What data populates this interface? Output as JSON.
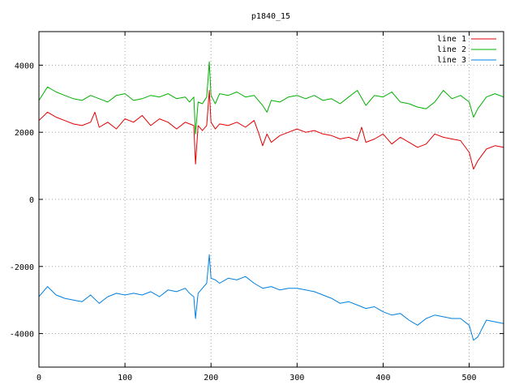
{
  "chart_data": {
    "type": "line",
    "title": "p1840_15",
    "xlabel": "",
    "ylabel": "",
    "xlim": [
      0,
      540
    ],
    "ylim": [
      -5000,
      5000
    ],
    "xticks": [
      0,
      100,
      200,
      300,
      400,
      500
    ],
    "yticks": [
      -4000,
      -2000,
      0,
      2000,
      4000
    ],
    "x_tick_labels": [
      "0",
      "100",
      "200",
      "300",
      "400",
      "500"
    ],
    "y_tick_labels": [
      "-4000",
      "-2000",
      "0",
      "2000",
      "4000"
    ],
    "grid": true,
    "legend_position": "top-right",
    "series": [
      {
        "name": "line 1",
        "color": "#e00000",
        "x": [
          0,
          10,
          20,
          30,
          40,
          50,
          60,
          65,
          70,
          80,
          90,
          100,
          110,
          120,
          130,
          140,
          150,
          160,
          170,
          175,
          180,
          182,
          185,
          190,
          195,
          198,
          200,
          205,
          210,
          220,
          230,
          240,
          250,
          255,
          260,
          265,
          270,
          280,
          290,
          300,
          310,
          320,
          330,
          340,
          350,
          360,
          370,
          375,
          380,
          390,
          400,
          410,
          420,
          430,
          440,
          450,
          460,
          470,
          480,
          490,
          500,
          505,
          510,
          520,
          530,
          540
        ],
        "y": [
          2350,
          2600,
          2450,
          2350,
          2250,
          2200,
          2300,
          2600,
          2150,
          2300,
          2100,
          2400,
          2300,
          2500,
          2200,
          2400,
          2300,
          2100,
          2300,
          2250,
          2200,
          1050,
          2200,
          2050,
          2200,
          3250,
          2300,
          2100,
          2250,
          2200,
          2300,
          2150,
          2350,
          2000,
          1600,
          1950,
          1700,
          1900,
          2000,
          2100,
          2000,
          2050,
          1950,
          1900,
          1800,
          1850,
          1750,
          2150,
          1700,
          1800,
          1950,
          1650,
          1850,
          1700,
          1550,
          1650,
          1950,
          1850,
          1800,
          1750,
          1400,
          900,
          1150,
          1500,
          1600,
          1550
        ]
      },
      {
        "name": "line 2",
        "color": "#00b000",
        "x": [
          0,
          10,
          20,
          30,
          40,
          50,
          60,
          70,
          80,
          90,
          100,
          110,
          120,
          130,
          140,
          150,
          160,
          170,
          175,
          180,
          182,
          185,
          190,
          195,
          198,
          200,
          205,
          210,
          220,
          230,
          240,
          250,
          260,
          265,
          270,
          280,
          290,
          300,
          310,
          320,
          330,
          340,
          350,
          360,
          370,
          380,
          390,
          400,
          410,
          420,
          430,
          440,
          450,
          460,
          470,
          480,
          490,
          500,
          505,
          510,
          520,
          530,
          540
        ],
        "y": [
          2950,
          3350,
          3200,
          3100,
          3000,
          2950,
          3100,
          3000,
          2900,
          3100,
          3150,
          2950,
          3000,
          3100,
          3050,
          3150,
          3000,
          3050,
          2900,
          3050,
          1950,
          2900,
          2850,
          3050,
          4100,
          3100,
          2850,
          3150,
          3100,
          3200,
          3050,
          3100,
          2800,
          2600,
          2950,
          2900,
          3050,
          3100,
          3000,
          3100,
          2950,
          3000,
          2850,
          3050,
          3250,
          2800,
          3100,
          3050,
          3200,
          2900,
          2850,
          2750,
          2700,
          2900,
          3250,
          3000,
          3100,
          2900,
          2450,
          2700,
          3050,
          3150,
          3050
        ]
      },
      {
        "name": "line 3",
        "color": "#0080e0",
        "x": [
          0,
          10,
          20,
          30,
          40,
          50,
          60,
          70,
          80,
          90,
          100,
          110,
          120,
          130,
          140,
          150,
          160,
          170,
          175,
          180,
          182,
          185,
          190,
          195,
          198,
          200,
          205,
          210,
          220,
          230,
          240,
          250,
          260,
          270,
          280,
          290,
          300,
          310,
          320,
          330,
          340,
          350,
          360,
          370,
          380,
          390,
          400,
          410,
          420,
          430,
          440,
          450,
          460,
          470,
          480,
          490,
          500,
          505,
          510,
          520,
          530,
          540
        ],
        "y": [
          -2900,
          -2600,
          -2850,
          -2950,
          -3000,
          -3050,
          -2850,
          -3100,
          -2900,
          -2800,
          -2850,
          -2800,
          -2850,
          -2750,
          -2900,
          -2700,
          -2750,
          -2650,
          -2800,
          -2900,
          -3550,
          -2800,
          -2650,
          -2500,
          -1650,
          -2350,
          -2400,
          -2500,
          -2350,
          -2400,
          -2300,
          -2500,
          -2650,
          -2600,
          -2700,
          -2650,
          -2650,
          -2700,
          -2750,
          -2850,
          -2950,
          -3100,
          -3050,
          -3150,
          -3250,
          -3200,
          -3350,
          -3450,
          -3400,
          -3600,
          -3750,
          -3550,
          -3450,
          -3500,
          -3550,
          -3550,
          -3750,
          -4200,
          -4100,
          -3600,
          -3650,
          -3700
        ]
      }
    ]
  }
}
